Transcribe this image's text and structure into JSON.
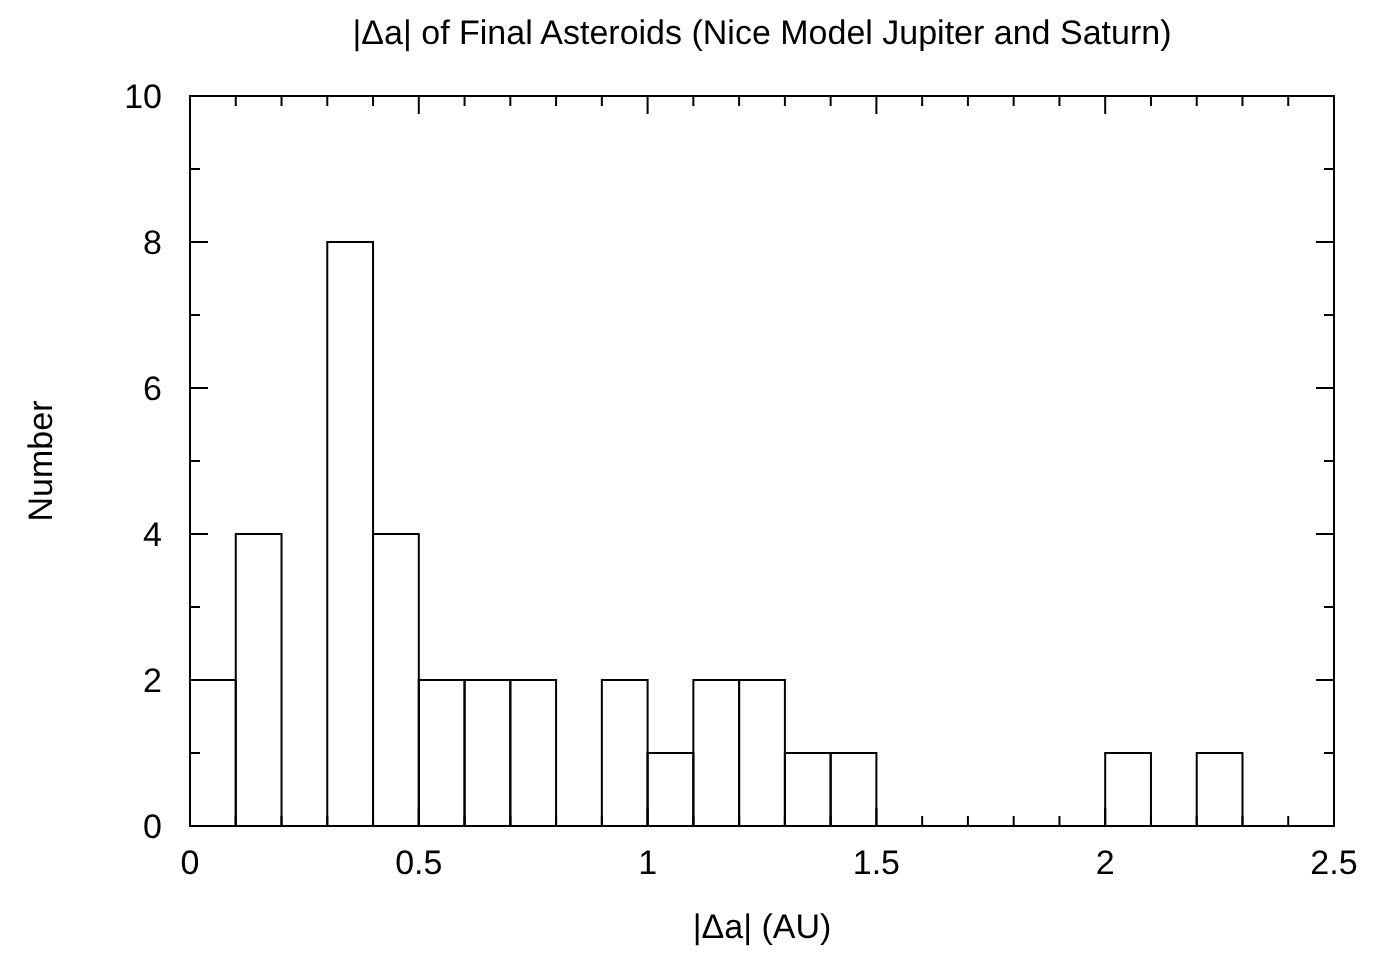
{
  "chart_data": {
    "type": "histogram",
    "title": "|Δa| of Final Asteroids (Nice Model Jupiter and Saturn)",
    "xlabel": "|Δa| (AU)",
    "ylabel": "Number",
    "bins": [
      0,
      0.1,
      0.2,
      0.3,
      0.4,
      0.5,
      0.6,
      0.7,
      0.8,
      0.9,
      1.0,
      1.1,
      1.2,
      1.3,
      1.4,
      1.5,
      1.6,
      1.7,
      1.8,
      1.9,
      2.0,
      2.1,
      2.2,
      2.3,
      2.4,
      2.5
    ],
    "values": [
      2,
      4,
      0,
      8,
      4,
      2,
      2,
      2,
      0,
      2,
      1,
      2,
      2,
      1,
      1,
      0,
      0,
      0,
      0,
      0,
      1,
      0,
      1,
      0,
      0
    ],
    "color": "#000000",
    "xlim": [
      0,
      2.5
    ],
    "ylim": [
      0,
      10
    ],
    "xticks": [
      0,
      0.5,
      1,
      1.5,
      2,
      2.5,
      {
        "value": 0.1,
        "label": null
      },
      {
        "value": 0.2,
        "label": null
      },
      {
        "value": 0.3,
        "label": null
      },
      {
        "value": 0.4,
        "label": null
      },
      {
        "value": 0.6,
        "label": null
      },
      {
        "value": 0.7,
        "label": null
      },
      {
        "value": 0.8,
        "label": null
      },
      {
        "value": 0.9,
        "label": null
      },
      {
        "value": 1.1,
        "label": null
      },
      {
        "value": 1.2,
        "label": null
      },
      {
        "value": 1.3,
        "label": null
      },
      {
        "value": 1.4,
        "label": null
      },
      {
        "value": 1.6,
        "label": null
      },
      {
        "value": 1.7,
        "label": null
      },
      {
        "value": 1.8,
        "label": null
      },
      {
        "value": 1.9,
        "label": null
      },
      {
        "value": 2.1,
        "label": null
      },
      {
        "value": 2.2,
        "label": null
      },
      {
        "value": 2.3,
        "label": null
      },
      {
        "value": 2.4,
        "label": null
      }
    ],
    "yticks": [
      0,
      2,
      4,
      6,
      8,
      10,
      {
        "value": 1,
        "label": null
      },
      {
        "value": 3,
        "label": null
      },
      {
        "value": 5,
        "label": null
      },
      {
        "value": 7,
        "label": null
      },
      {
        "value": 9,
        "label": null
      }
    ],
    "grid": false
  }
}
